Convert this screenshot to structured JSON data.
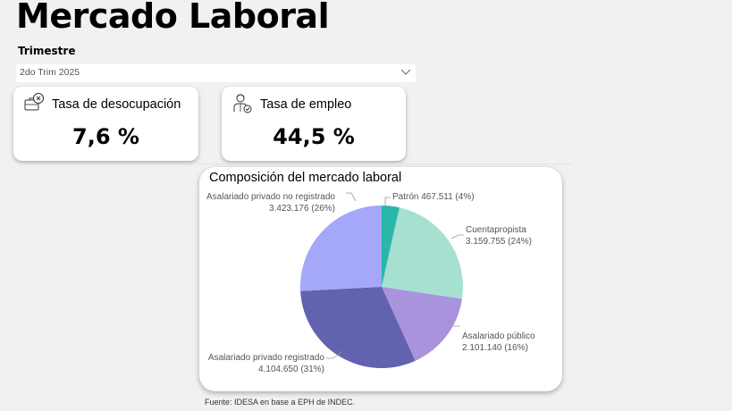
{
  "header": {
    "title": "Mercado Laboral"
  },
  "slicer": {
    "label": "Trimestre",
    "value": "2do Trim 2025"
  },
  "kpis": [
    {
      "title": "Tasa de desocupación",
      "value": "7,6 %",
      "icon": "unemployment-briefcase-icon"
    },
    {
      "title": "Tasa de empleo",
      "value": "44,5 %",
      "icon": "employed-person-icon"
    }
  ],
  "pie": {
    "title": "Composición del mercado laboral",
    "labels": [
      {
        "name": "Patrón",
        "value_text": "467.511 (4%)"
      },
      {
        "name": "Cuentapropista",
        "value_text": "3.159.755 (24%)"
      },
      {
        "name": "Asalariado público",
        "value_text": "2.101.140 (16%)"
      },
      {
        "name": "Asalariado privado registrado",
        "value_text": "4.104.650 (31%)"
      },
      {
        "name": "Asalariado privado no registrado",
        "value_text": "3.423.176 (26%)"
      }
    ]
  },
  "source": "Fuente: IDESA en base a EPH de INDEC.",
  "colors": {
    "patron": "#2ab7aa",
    "cuentapropista": "#a6e0d0",
    "publico": "#a993dc",
    "privado_registrado": "#6262b0",
    "privado_no_registrado": "#a5a7f9"
  },
  "chart_data": {
    "type": "pie",
    "title": "Composición del mercado laboral",
    "categories": [
      "Patrón",
      "Cuentapropista",
      "Asalariado público",
      "Asalariado privado registrado",
      "Asalariado privado no registrado"
    ],
    "values": [
      467511,
      3159755,
      2101140,
      4104650,
      3423176
    ],
    "percentages": [
      4,
      24,
      16,
      31,
      26
    ],
    "colors": [
      "#2ab7aa",
      "#a6e0d0",
      "#a993dc",
      "#6262b0",
      "#a5a7f9"
    ],
    "start_angle": "top, clockwise",
    "legend": "none (data labels outside)"
  }
}
